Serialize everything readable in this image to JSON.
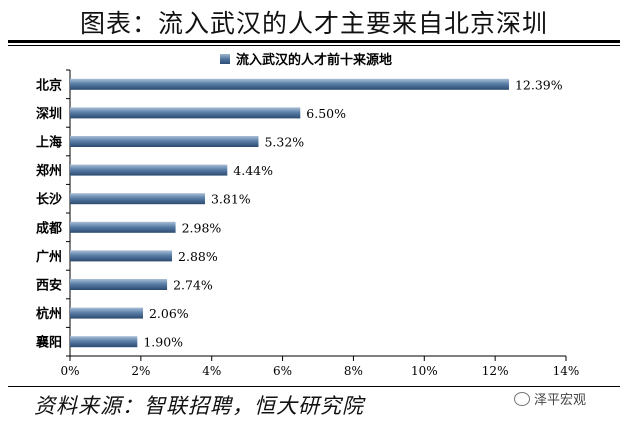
{
  "title": "图表：流入武汉的人才主要来自北京深圳",
  "source": "资料来源：智联招聘，恒大研究院",
  "watermark": "泽平宏观",
  "chart_data": {
    "type": "bar",
    "orientation": "horizontal",
    "series_name": "流入武汉的人才前十来源地",
    "categories": [
      "北京",
      "深圳",
      "上海",
      "郑州",
      "长沙",
      "成都",
      "广州",
      "西安",
      "杭州",
      "襄阳"
    ],
    "values": [
      12.39,
      6.5,
      5.32,
      4.44,
      3.81,
      2.98,
      2.88,
      2.74,
      2.06,
      1.9
    ],
    "value_labels": [
      "12.39%",
      "6.50%",
      "5.32%",
      "4.44%",
      "3.81%",
      "2.98%",
      "2.88%",
      "2.74%",
      "2.06%",
      "1.90%"
    ],
    "xlim": [
      0,
      14
    ],
    "xticks": [
      "0%",
      "2%",
      "4%",
      "6%",
      "8%",
      "10%",
      "12%",
      "14%"
    ],
    "xtick_values": [
      0,
      2,
      4,
      6,
      8,
      10,
      12,
      14
    ],
    "legend_position": "top",
    "grid": false,
    "color": "#4b6f99"
  }
}
